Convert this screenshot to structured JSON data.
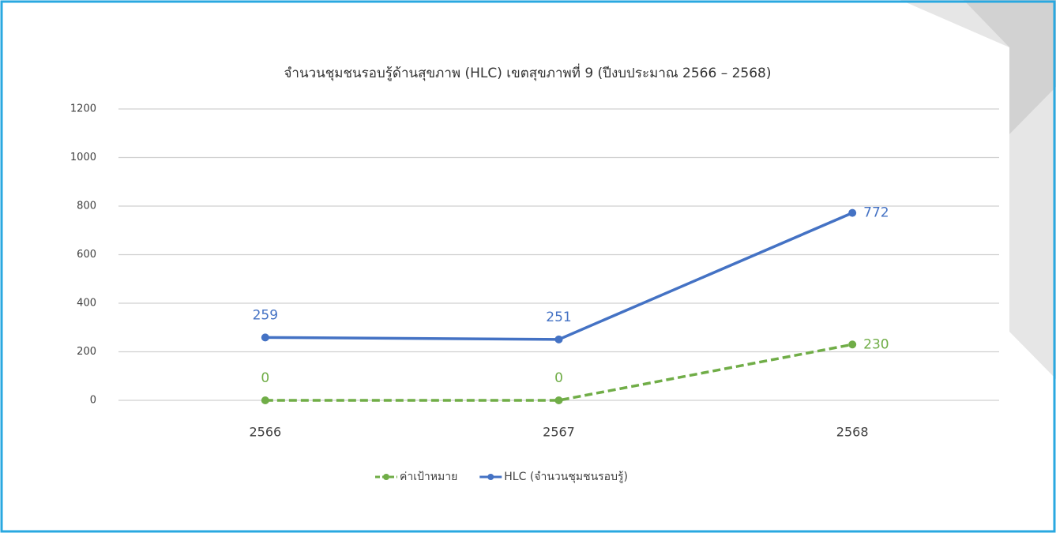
{
  "chart_data": {
    "type": "line",
    "title": "จำนวนชุมชนรอบรู้ด้านสุขภาพ (HLC) เขตสุขภาพที่ 9 (ปีงบประมาณ 2566 – 2568)",
    "categories": [
      "2566",
      "2567",
      "2568"
    ],
    "series": [
      {
        "name": "ค่าเป้าหมาย",
        "color": "#70ad47",
        "dashed": true,
        "values": [
          0,
          0,
          230
        ]
      },
      {
        "name": "HLC (จำนวนชุมชนรอบรู้)",
        "color": "#4472c4",
        "dashed": false,
        "values": [
          259,
          251,
          772
        ]
      }
    ],
    "ylim": [
      0,
      1200
    ],
    "yticks": [
      0,
      200,
      400,
      600,
      800,
      1000,
      1200
    ],
    "grid": true,
    "legend": "bottom"
  }
}
